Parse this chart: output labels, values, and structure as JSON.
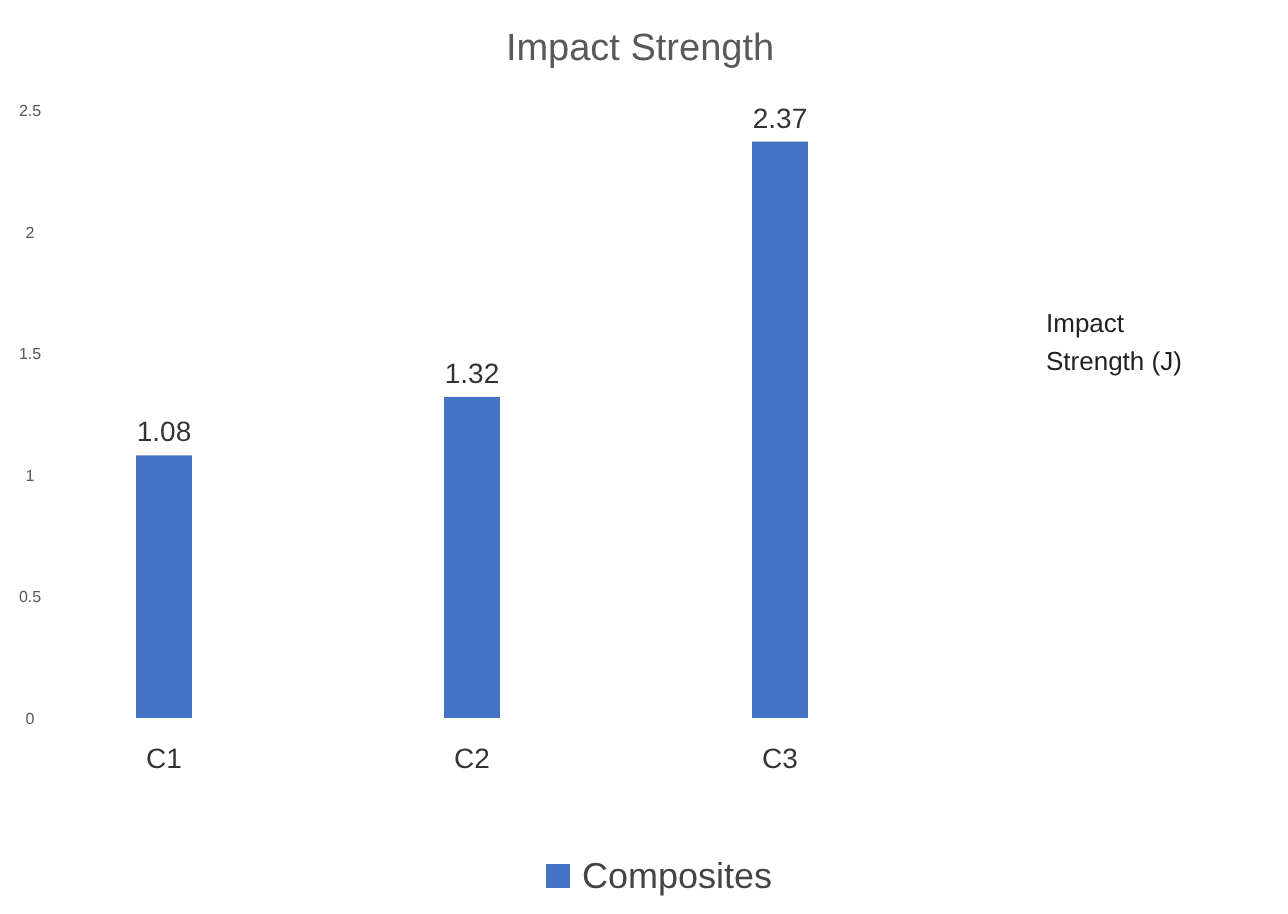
{
  "chart_data": {
    "type": "bar",
    "title": "Impact Strength",
    "categories": [
      "C1",
      "C2",
      "C3"
    ],
    "series": [
      {
        "name": "Composites",
        "color": "#4472c4",
        "values": [
          1.08,
          1.32,
          2.37
        ]
      }
    ],
    "ylim": [
      0,
      2.5
    ],
    "yticks": [
      0,
      0.5,
      1,
      1.5,
      2,
      2.5
    ],
    "data_labels": true,
    "legend": "bottom",
    "grid": false,
    "annotations": [
      "Impact Strength (J)"
    ]
  }
}
